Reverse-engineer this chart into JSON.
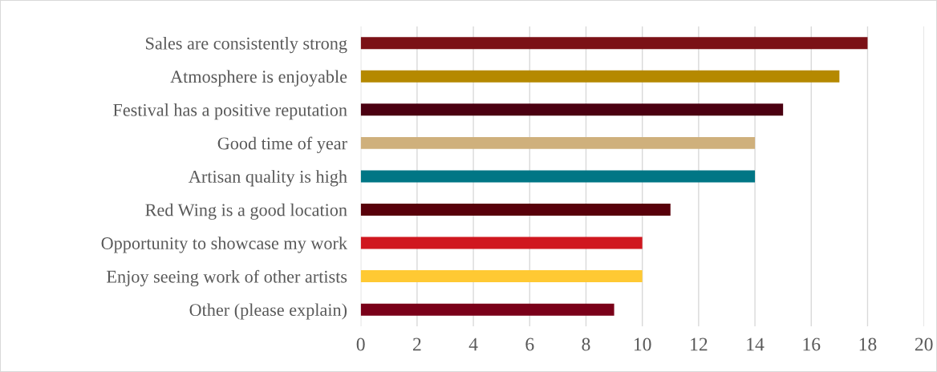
{
  "chart_data": {
    "type": "bar",
    "orientation": "horizontal",
    "categories": [
      "Sales are consistently strong",
      "Atmosphere is enjoyable",
      "Festival has a positive reputation",
      "Good time of year",
      "Artisan quality is high",
      "Red Wing is a good location",
      "Opportunity to showcase my work",
      "Enjoy seeing work of other artists",
      "Other (please explain)"
    ],
    "values": [
      18,
      17,
      15,
      14,
      14,
      11,
      10,
      10,
      9
    ],
    "colors": [
      "#7b1116",
      "#b58900",
      "#4b0011",
      "#cfb07c",
      "#007685",
      "#58000a",
      "#d0171f",
      "#ffc933",
      "#7a0019"
    ],
    "xlim": [
      0,
      20
    ],
    "xticks": [
      0,
      2,
      4,
      6,
      8,
      10,
      12,
      14,
      16,
      18,
      20
    ],
    "grid": "x"
  }
}
